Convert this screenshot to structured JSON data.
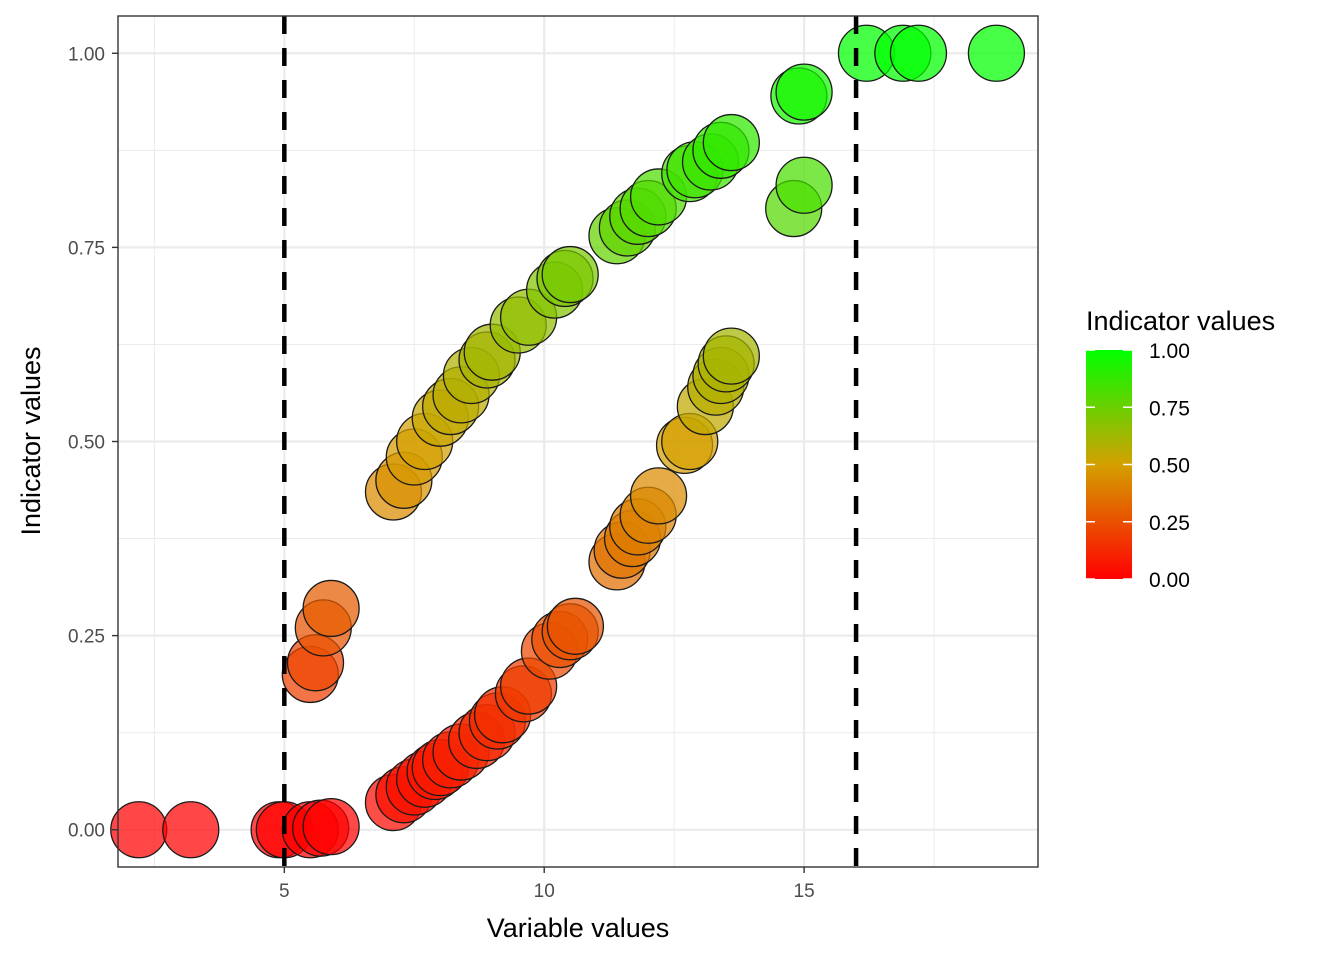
{
  "chart_data": {
    "type": "scatter",
    "xlabel": "Variable values",
    "ylabel": "Indicator values",
    "xlim": [
      1.8,
      19.5
    ],
    "ylim": [
      -0.048,
      1.048
    ],
    "x_ticks": [
      5,
      10,
      15
    ],
    "x_tick_labels": [
      "5",
      "10",
      "15"
    ],
    "y_ticks": [
      0,
      0.25,
      0.5,
      0.75,
      1.0
    ],
    "y_tick_labels": [
      "0.00",
      "0.25",
      "0.50",
      "0.75",
      "1.00"
    ],
    "grid": true,
    "theme": "bw",
    "vlines": [
      5,
      16
    ],
    "vline_style": "dashed",
    "color_scale": {
      "low": "#ff0000",
      "mid": "#d4a000",
      "high": "#00ff00",
      "min": 0,
      "max": 1
    },
    "legend": {
      "title": "Indicator values",
      "position": "right",
      "labels": [
        "1.00",
        "0.75",
        "0.50",
        "0.25",
        "0.00"
      ],
      "values": [
        1.0,
        0.75,
        0.5,
        0.25,
        0.0
      ]
    },
    "series": [
      {
        "points": [
          {
            "x": 2.2,
            "y": 0.0
          },
          {
            "x": 3.2,
            "y": 0.0
          },
          {
            "x": 4.9,
            "y": 0.0
          },
          {
            "x": 5.0,
            "y": 0.0
          },
          {
            "x": 5.5,
            "y": 0.0
          },
          {
            "x": 5.7,
            "y": 0.002
          },
          {
            "x": 5.9,
            "y": 0.004
          },
          {
            "x": 5.5,
            "y": 0.2
          },
          {
            "x": 5.6,
            "y": 0.215
          },
          {
            "x": 5.75,
            "y": 0.26
          },
          {
            "x": 5.9,
            "y": 0.285
          },
          {
            "x": 7.1,
            "y": 0.035
          },
          {
            "x": 7.3,
            "y": 0.045
          },
          {
            "x": 7.5,
            "y": 0.055
          },
          {
            "x": 7.7,
            "y": 0.065
          },
          {
            "x": 7.9,
            "y": 0.075
          },
          {
            "x": 8.0,
            "y": 0.08
          },
          {
            "x": 8.2,
            "y": 0.09
          },
          {
            "x": 8.4,
            "y": 0.1
          },
          {
            "x": 8.7,
            "y": 0.115
          },
          {
            "x": 8.9,
            "y": 0.125
          },
          {
            "x": 9.1,
            "y": 0.14
          },
          {
            "x": 9.2,
            "y": 0.148
          },
          {
            "x": 9.6,
            "y": 0.175
          },
          {
            "x": 9.7,
            "y": 0.185
          },
          {
            "x": 10.1,
            "y": 0.23
          },
          {
            "x": 10.3,
            "y": 0.245
          },
          {
            "x": 10.5,
            "y": 0.255
          },
          {
            "x": 10.6,
            "y": 0.262
          },
          {
            "x": 11.4,
            "y": 0.345
          },
          {
            "x": 11.5,
            "y": 0.36
          },
          {
            "x": 11.7,
            "y": 0.375
          },
          {
            "x": 11.8,
            "y": 0.39
          },
          {
            "x": 12.0,
            "y": 0.405
          },
          {
            "x": 12.2,
            "y": 0.43
          },
          {
            "x": 12.7,
            "y": 0.495
          },
          {
            "x": 12.8,
            "y": 0.5
          },
          {
            "x": 13.1,
            "y": 0.545
          },
          {
            "x": 13.3,
            "y": 0.57
          },
          {
            "x": 13.4,
            "y": 0.585
          },
          {
            "x": 13.5,
            "y": 0.6
          },
          {
            "x": 13.6,
            "y": 0.61
          },
          {
            "x": 7.1,
            "y": 0.435
          },
          {
            "x": 7.3,
            "y": 0.45
          },
          {
            "x": 7.5,
            "y": 0.48
          },
          {
            "x": 7.7,
            "y": 0.5
          },
          {
            "x": 8.0,
            "y": 0.53
          },
          {
            "x": 8.2,
            "y": 0.545
          },
          {
            "x": 8.4,
            "y": 0.56
          },
          {
            "x": 8.6,
            "y": 0.585
          },
          {
            "x": 8.9,
            "y": 0.605
          },
          {
            "x": 9.0,
            "y": 0.615
          },
          {
            "x": 9.5,
            "y": 0.65
          },
          {
            "x": 9.7,
            "y": 0.66
          },
          {
            "x": 10.2,
            "y": 0.695
          },
          {
            "x": 10.4,
            "y": 0.71
          },
          {
            "x": 10.5,
            "y": 0.715
          },
          {
            "x": 11.4,
            "y": 0.765
          },
          {
            "x": 11.6,
            "y": 0.775
          },
          {
            "x": 11.8,
            "y": 0.79
          },
          {
            "x": 12.0,
            "y": 0.8
          },
          {
            "x": 12.2,
            "y": 0.815
          },
          {
            "x": 12.8,
            "y": 0.845
          },
          {
            "x": 12.9,
            "y": 0.85
          },
          {
            "x": 13.2,
            "y": 0.86
          },
          {
            "x": 13.4,
            "y": 0.875
          },
          {
            "x": 13.6,
            "y": 0.885
          },
          {
            "x": 14.8,
            "y": 0.8
          },
          {
            "x": 15.0,
            "y": 0.83
          },
          {
            "x": 14.9,
            "y": 0.945
          },
          {
            "x": 15.0,
            "y": 0.95
          },
          {
            "x": 16.2,
            "y": 1.0
          },
          {
            "x": 16.9,
            "y": 1.0
          },
          {
            "x": 17.2,
            "y": 1.0
          },
          {
            "x": 18.7,
            "y": 1.0
          }
        ]
      }
    ]
  }
}
